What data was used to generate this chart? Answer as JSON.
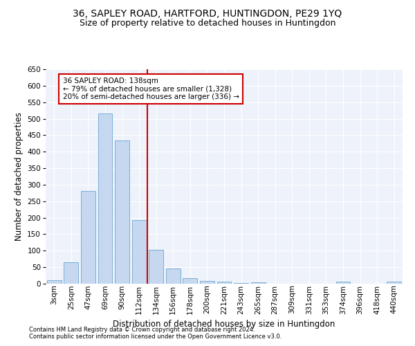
{
  "title": "36, SAPLEY ROAD, HARTFORD, HUNTINGDON, PE29 1YQ",
  "subtitle": "Size of property relative to detached houses in Huntingdon",
  "xlabel": "Distribution of detached houses by size in Huntingdon",
  "ylabel": "Number of detached properties",
  "categories": [
    "3sqm",
    "25sqm",
    "47sqm",
    "69sqm",
    "90sqm",
    "112sqm",
    "134sqm",
    "156sqm",
    "178sqm",
    "200sqm",
    "221sqm",
    "243sqm",
    "265sqm",
    "287sqm",
    "309sqm",
    "331sqm",
    "353sqm",
    "374sqm",
    "396sqm",
    "418sqm",
    "440sqm"
  ],
  "values": [
    10,
    65,
    280,
    515,
    435,
    193,
    103,
    46,
    16,
    9,
    6,
    2,
    5,
    0,
    0,
    0,
    0,
    7,
    0,
    0,
    6
  ],
  "bar_color": "#c5d8f0",
  "bar_edge_color": "#7aaed6",
  "vline_color": "#cc0000",
  "annotation_text": "36 SAPLEY ROAD: 138sqm\n← 79% of detached houses are smaller (1,328)\n20% of semi-detached houses are larger (336) →",
  "annotation_box_color": "#ffffff",
  "annotation_box_edge": "#cc0000",
  "ylim": [
    0,
    650
  ],
  "yticks": [
    0,
    50,
    100,
    150,
    200,
    250,
    300,
    350,
    400,
    450,
    500,
    550,
    600,
    650
  ],
  "background_color": "#eef2fa",
  "grid_color": "#ffffff",
  "footer1": "Contains HM Land Registry data © Crown copyright and database right 2024.",
  "footer2": "Contains public sector information licensed under the Open Government Licence v3.0.",
  "title_fontsize": 10,
  "subtitle_fontsize": 9,
  "xlabel_fontsize": 8.5,
  "ylabel_fontsize": 8.5,
  "tick_fontsize": 7.5,
  "annotation_fontsize": 7.5,
  "footer_fontsize": 6
}
